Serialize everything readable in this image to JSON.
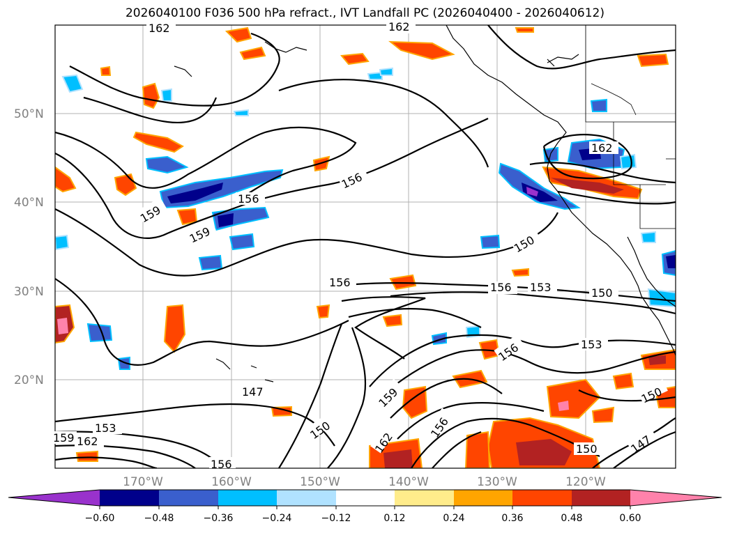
{
  "title": "2026040100 F036 500 hPa refract., IVT Landfall PC (2026040400 - 2026040612)",
  "lat_labels": [
    "50°N",
    "40°N",
    "30°N",
    "20°N"
  ],
  "lon_labels": [
    "170°W",
    "160°W",
    "150°W",
    "140°W",
    "130°W",
    "120°W"
  ],
  "contour_labels": [
    "162",
    "162",
    "162",
    "156",
    "159",
    "156",
    "159",
    "150",
    "156",
    "156",
    "153",
    "150",
    "153",
    "156",
    "147",
    "159",
    "150",
    "156",
    "162",
    "153",
    "159",
    "162",
    "156",
    "150",
    "150",
    "147"
  ],
  "colorbar": {
    "ticks": [
      "−0.60",
      "−0.48",
      "−0.36",
      "−0.24",
      "−0.12",
      "0.12",
      "0.24",
      "0.36",
      "0.48",
      "0.60"
    ],
    "colors": [
      "#9932cc",
      "#00008b",
      "#3a5fcd",
      "#00bfff",
      "#b0e2ff",
      "#ffffff",
      "#ffec8b",
      "#ffa500",
      "#ff4500",
      "#b22222",
      "#ff82ab"
    ]
  }
}
